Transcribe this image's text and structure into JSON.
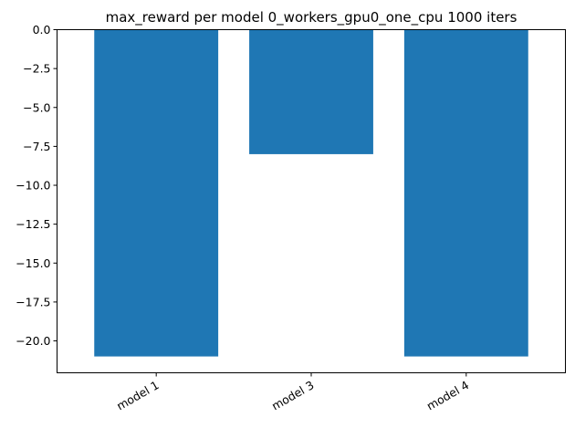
{
  "chart_data": {
    "type": "bar",
    "title": "max_reward per model 0_workers_gpu0_one_cpu 1000 iters",
    "xlabel": "",
    "ylabel": "",
    "categories": [
      "model 1",
      "model 3",
      "model 4"
    ],
    "values": [
      -21.0,
      -8.0,
      -21.0
    ],
    "ylim": [
      -22.05,
      0.0
    ],
    "yticks": [
      0.0,
      -2.5,
      -5.0,
      -7.5,
      -10.0,
      -12.5,
      -15.0,
      -17.5,
      -20.0
    ],
    "ytick_labels": [
      "0.0",
      "−2.5",
      "−5.0",
      "−7.5",
      "−10.0",
      "−12.5",
      "−15.0",
      "−17.5",
      "−20.0"
    ],
    "bar_color": "#1f77b4",
    "grid": false,
    "legend": "none"
  }
}
